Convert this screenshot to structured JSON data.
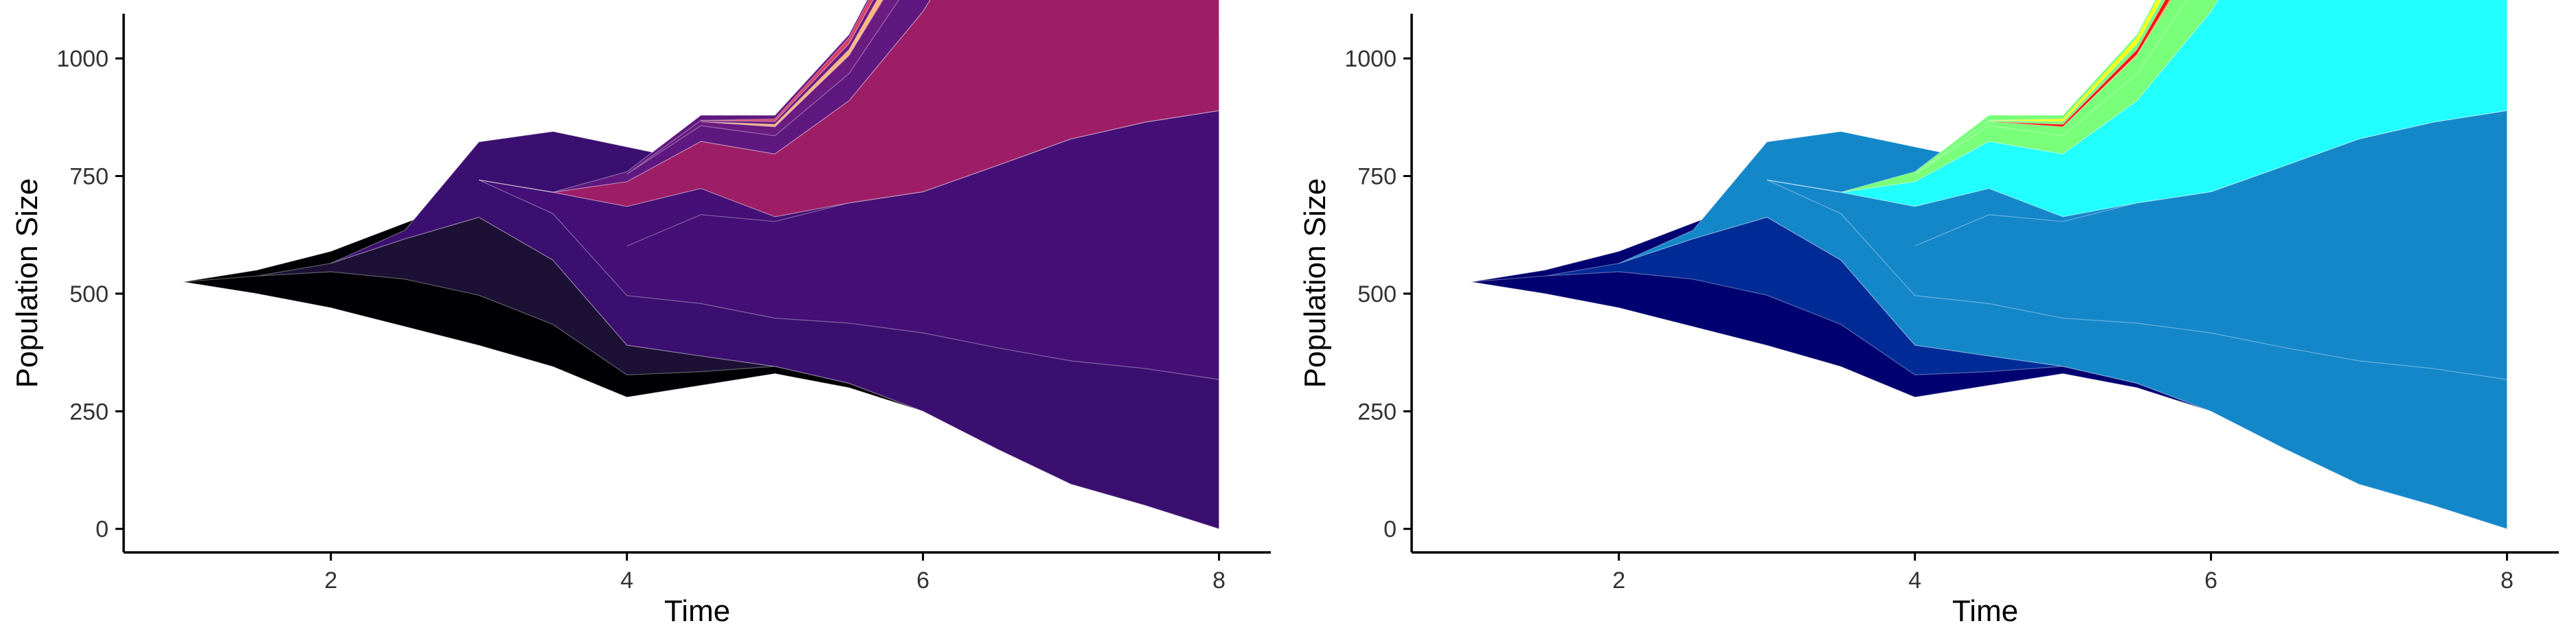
{
  "chart_data": [
    {
      "type": "area",
      "xlabel": "Time",
      "ylabel": "Population Size",
      "xlim": [
        0.6,
        8.35
      ],
      "ylim": [
        -50,
        1095
      ],
      "x_ticks": [
        "2",
        "4",
        "6",
        "8"
      ],
      "y_ticks": [
        "0",
        "250",
        "500",
        "750",
        "1000"
      ],
      "grid": false,
      "palette": "magma",
      "colors": {
        "c1": "#000004",
        "c2": "#1c1034",
        "c3": "#3b0f70",
        "c4": "#440f76",
        "c5": "#4c117a",
        "c6": "#9e1d67",
        "c7": "#5f187f",
        "c8": "#6a1c81",
        "c9": "#d93f64",
        "c10": "#f6793f",
        "c11": "#fdb57b"
      }
    },
    {
      "type": "area",
      "xlabel": "Time",
      "ylabel": "Population Size",
      "xlim": [
        0.6,
        8.35
      ],
      "ylim": [
        -50,
        1095
      ],
      "x_ticks": [
        "2",
        "4",
        "6",
        "8"
      ],
      "y_ticks": [
        "0",
        "250",
        "500",
        "750",
        "1000"
      ],
      "grid": false,
      "palette": "jet",
      "colors": {
        "c1": "#000070",
        "c2": "#002b96",
        "c3": "#1487c9",
        "c4": "#1487c9",
        "c5": "#1487c9",
        "c6": "#22ffff",
        "c7": "#79ff79",
        "c8": "#79ff79",
        "c9": "#ffff00",
        "c10": "#ff7a14",
        "c11": "#ff0f0f"
      }
    }
  ],
  "clones": [
    {
      "id": "c1",
      "parent": null,
      "start": 1.0,
      "x": [
        1.0,
        1.5,
        2.0,
        2.5,
        3.0,
        3.5,
        4.0,
        4.5,
        5.0,
        5.5,
        6.0,
        6.5,
        7.0,
        7.5,
        8.0
      ],
      "total": [
        0,
        50,
        100,
        180,
        270,
        360,
        470,
        400,
        380,
        360,
        330,
        330,
        330,
        330,
        330
      ],
      "self": [
        0,
        50,
        85,
        110,
        120,
        105,
        60,
        35,
        20,
        10,
        0,
        0,
        0,
        0,
        0
      ]
    },
    {
      "id": "c2",
      "parent": "c1",
      "start": 1.5,
      "x": [
        1.0,
        1.5,
        2.0,
        2.5,
        3.0,
        3.5,
        4.0,
        4.5,
        5.0,
        5.5,
        6.0,
        6.5,
        7.0,
        7.5,
        8.0
      ],
      "total": [
        0,
        0,
        15,
        70,
        140,
        120,
        60,
        30,
        0,
        0,
        0,
        0,
        0,
        0,
        0
      ],
      "self": [
        0,
        0,
        15,
        45,
        95,
        85,
        55,
        30,
        0,
        0,
        0,
        0,
        0,
        0,
        0
      ]
    },
    {
      "id": "c3",
      "parent": "c1",
      "start": 2.5,
      "x": [
        1.0,
        1.5,
        2.0,
        2.5,
        3.0,
        3.5,
        4.0,
        4.5,
        5.0,
        5.5,
        6.0,
        6.5,
        7.0,
        7.5,
        8.0
      ],
      "total": [
        0,
        0,
        0,
        15,
        135,
        240,
        400,
        370,
        360,
        350,
        330,
        330,
        330,
        330,
        330
      ],
      "self": [
        0,
        0,
        0,
        15,
        100,
        130,
        150,
        150,
        150,
        150,
        150,
        150,
        150,
        150,
        150
      ]
    },
    {
      "id": "c4",
      "parent": "c3",
      "start": 3.5,
      "x": [
        1.0,
        1.5,
        2.0,
        2.5,
        3.0,
        3.5,
        4.0,
        4.5,
        5.0,
        5.5,
        6.0,
        6.5,
        7.0,
        7.5,
        8.0
      ],
      "total": [
        0,
        0,
        0,
        0,
        0,
        40,
        180,
        220,
        210,
        200,
        180,
        180,
        180,
        180,
        180
      ],
      "self": [
        0,
        0,
        0,
        0,
        0,
        40,
        100,
        170,
        200,
        200,
        180,
        180,
        180,
        180,
        180
      ]
    },
    {
      "id": "c5",
      "parent": "c4",
      "start": 4.5,
      "x": [
        1.0,
        1.5,
        2.0,
        2.5,
        3.0,
        3.5,
        4.0,
        4.5,
        5.0,
        5.5,
        6.0,
        6.5,
        7.0,
        7.5,
        8.0
      ],
      "total": [
        0,
        0,
        0,
        0,
        0,
        0,
        0,
        0,
        0,
        0,
        0,
        0,
        0,
        0,
        0
      ],
      "self": [
        0,
        0,
        0,
        0,
        0,
        0,
        0,
        0,
        0,
        0,
        0,
        0,
        0,
        0,
        0
      ]
    },
    {
      "id": "c6",
      "parent": "c3",
      "start": 3.5,
      "x": [
        1.0,
        1.5,
        2.0,
        2.5,
        3.0,
        3.5,
        4.0,
        4.5,
        5.0,
        5.5,
        6.0,
        6.5,
        7.0,
        7.5,
        8.0
      ],
      "total": [
        0,
        0,
        0,
        0,
        0,
        0,
        50,
        90,
        130,
        170,
        230,
        270,
        300,
        320,
        340
      ],
      "self": [
        0,
        0,
        0,
        0,
        0,
        0,
        50,
        90,
        130,
        170,
        230,
        270,
        300,
        320,
        340
      ]
    },
    {
      "id": "c7",
      "parent": "c3",
      "start": 3.5,
      "x": [
        1.0,
        1.5,
        2.0,
        2.5,
        3.0,
        3.5,
        4.0,
        4.5,
        5.0,
        5.5,
        6.0,
        6.5,
        7.0,
        7.5,
        8.0
      ],
      "total": [
        0,
        0,
        0,
        0,
        0,
        0,
        20,
        50,
        80,
        110,
        150,
        190,
        230,
        260,
        290
      ],
      "self": [
        0,
        0,
        0,
        0,
        0,
        0,
        20,
        40,
        50,
        60,
        80,
        100,
        110,
        115,
        120
      ]
    },
    {
      "id": "c8",
      "parent": "c7",
      "start": 4.5,
      "x": [
        1.0,
        1.5,
        2.0,
        2.5,
        3.0,
        3.5,
        4.0,
        4.5,
        5.0,
        5.5,
        6.0,
        6.5,
        7.0,
        7.5,
        8.0
      ],
      "total": [
        0,
        0,
        0,
        0,
        0,
        0,
        0,
        10,
        30,
        50,
        70,
        90,
        120,
        140,
        170
      ],
      "self": [
        0,
        0,
        0,
        0,
        0,
        0,
        0,
        10,
        25,
        40,
        50,
        60,
        70,
        75,
        80
      ]
    },
    {
      "id": "c9",
      "parent": "c7",
      "start": 5.0,
      "x": [
        1.0,
        1.5,
        2.0,
        2.5,
        3.0,
        3.5,
        4.0,
        4.5,
        5.0,
        5.5,
        6.0,
        6.5,
        7.0,
        7.5,
        8.0
      ],
      "total": [
        0,
        0,
        0,
        0,
        0,
        0,
        0,
        0,
        5,
        10,
        15,
        18,
        20,
        20,
        20
      ],
      "self": [
        0,
        0,
        0,
        0,
        0,
        0,
        0,
        0,
        5,
        10,
        15,
        18,
        20,
        20,
        20
      ]
    },
    {
      "id": "c10",
      "parent": "c8",
      "start": 5.5,
      "x": [
        1.0,
        1.5,
        2.0,
        2.5,
        3.0,
        3.5,
        4.0,
        4.5,
        5.0,
        5.5,
        6.0,
        6.5,
        7.0,
        7.5,
        8.0
      ],
      "total": [
        0,
        0,
        0,
        0,
        0,
        0,
        0,
        0,
        0,
        2,
        5,
        10,
        15,
        18,
        20
      ],
      "self": [
        0,
        0,
        0,
        0,
        0,
        0,
        0,
        0,
        0,
        2,
        5,
        10,
        15,
        18,
        20
      ]
    },
    {
      "id": "c11",
      "parent": "c8",
      "start": 5.0,
      "x": [
        1.0,
        1.5,
        2.0,
        2.5,
        3.0,
        3.5,
        4.0,
        4.5,
        5.0,
        5.5,
        6.0,
        6.5,
        7.0,
        7.5,
        8.0
      ],
      "total": [
        0,
        0,
        0,
        0,
        0,
        0,
        0,
        0,
        5,
        8,
        15,
        25,
        35,
        47,
        70
      ],
      "self": [
        0,
        0,
        0,
        0,
        0,
        0,
        0,
        0,
        5,
        8,
        15,
        25,
        35,
        47,
        70
      ]
    }
  ]
}
